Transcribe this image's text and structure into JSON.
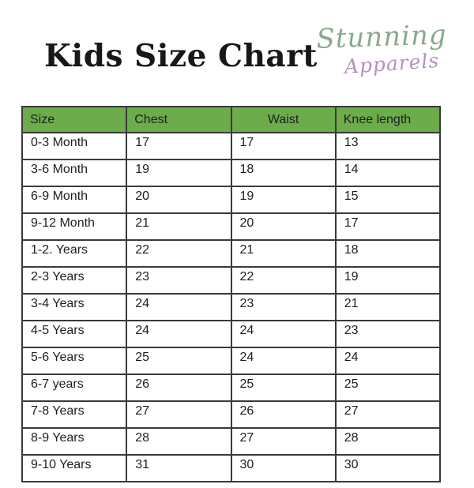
{
  "header": {
    "title": "Kids Size Chart",
    "logo": {
      "line1": "Stunning",
      "line2": "Apparels",
      "line1_color": "#89a98b",
      "line2_color": "#b48fc4"
    }
  },
  "chart_data": {
    "type": "table",
    "title": "Kids Size Chart",
    "columns": [
      "Size",
      "Chest",
      "Waist",
      "Knee length"
    ],
    "centered_column_index": 2,
    "rows": [
      [
        "0-3 Month",
        "17",
        "17",
        "13"
      ],
      [
        "3-6 Month",
        "19",
        "18",
        "14"
      ],
      [
        "6-9 Month",
        "20",
        "19",
        "15"
      ],
      [
        "9-12 Month",
        "21",
        "20",
        "17"
      ],
      [
        "1-2. Years",
        "22",
        "21",
        "18"
      ],
      [
        "2-3 Years",
        "23",
        "22",
        "19"
      ],
      [
        "3-4 Years",
        "24",
        "23",
        "21"
      ],
      [
        "4-5 Years",
        "24",
        "24",
        "23"
      ],
      [
        "5-6 Years",
        "25",
        "24",
        "24"
      ],
      [
        "6-7 years",
        "26",
        "25",
        "25"
      ],
      [
        "7-8 Years",
        "27",
        "26",
        "27"
      ],
      [
        "8-9 Years",
        "28",
        "27",
        "28"
      ],
      [
        "9-10 Years",
        "31",
        "30",
        "30"
      ]
    ],
    "colors": {
      "header_bg": "#6cac4a",
      "border": "#3a3a3a",
      "text": "#1e1e1e",
      "background": "#ffffff"
    }
  }
}
